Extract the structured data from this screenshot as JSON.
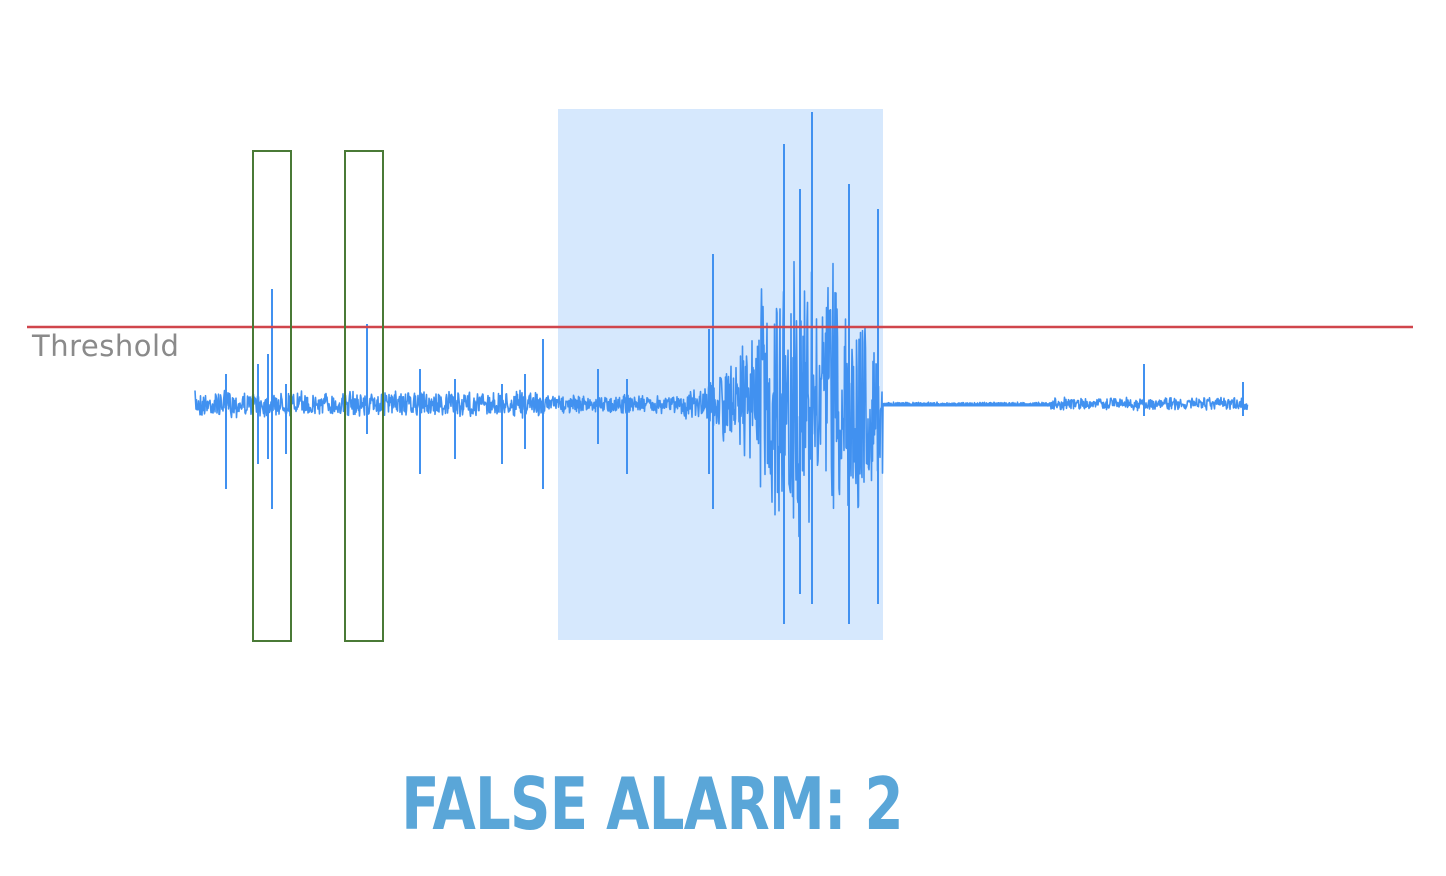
{
  "threshold": {
    "label": "Threshold",
    "color": "#d0454c"
  },
  "waveform": {
    "color": "#4191f0"
  },
  "detection_region": {
    "color": "#d6e8fd"
  },
  "false_alarm_boxes": {
    "count": 2,
    "color": "#4a7a36"
  },
  "caption": {
    "text": "FALSE ALARM: 2",
    "color": "#5aa6d8"
  }
}
